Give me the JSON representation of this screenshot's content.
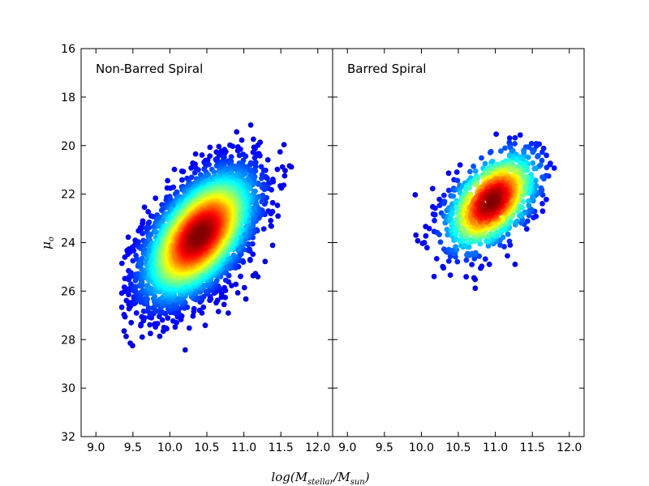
{
  "chart_data": {
    "type": "scatter",
    "style": "density-colored scatter (jet colormap: blue = low density, red = high density)",
    "shared_y_axis": {
      "label": "μo",
      "label_main": "μ",
      "label_sub": "o",
      "ylim": [
        16,
        32
      ],
      "inverted": true,
      "ticks": [
        "16",
        "18",
        "20",
        "22",
        "24",
        "26",
        "28",
        "30",
        "32"
      ]
    },
    "x_axis": {
      "label": "log(Mstellar/Msun)",
      "label_main_1": "log(M",
      "label_sub_1": "stellar",
      "label_mid": "/M",
      "label_sub_2": "sun",
      "label_end": ")",
      "xlim": [
        8.8,
        12.2
      ],
      "ticks": [
        "9.0",
        "9.5",
        "10.0",
        "10.5",
        "11.0",
        "11.5",
        "12.0"
      ]
    },
    "panels": [
      {
        "title": "Non-Barred Spiral",
        "center": [
          10.4,
          23.7
        ],
        "x_range": [
          9.3,
          12.0
        ],
        "y_range": [
          19.0,
          28.5
        ],
        "n_points": 4500,
        "sigma_x": 0.38,
        "sigma_y": 1.35,
        "correlation": 0.55
      },
      {
        "title": "Barred Spiral",
        "center": [
          10.95,
          22.3
        ],
        "x_range": [
          9.3,
          11.8
        ],
        "y_range": [
          19.3,
          26.9
        ],
        "n_points": 1100,
        "sigma_x": 0.32,
        "sigma_y": 1.05,
        "correlation": 0.5
      }
    ],
    "colors": {
      "low": "#00007f",
      "mid_low": "#0080ff",
      "mid": "#7fff7f",
      "mid_high": "#ff8000",
      "high": "#7f0000"
    },
    "grid": false,
    "legend": "none"
  }
}
